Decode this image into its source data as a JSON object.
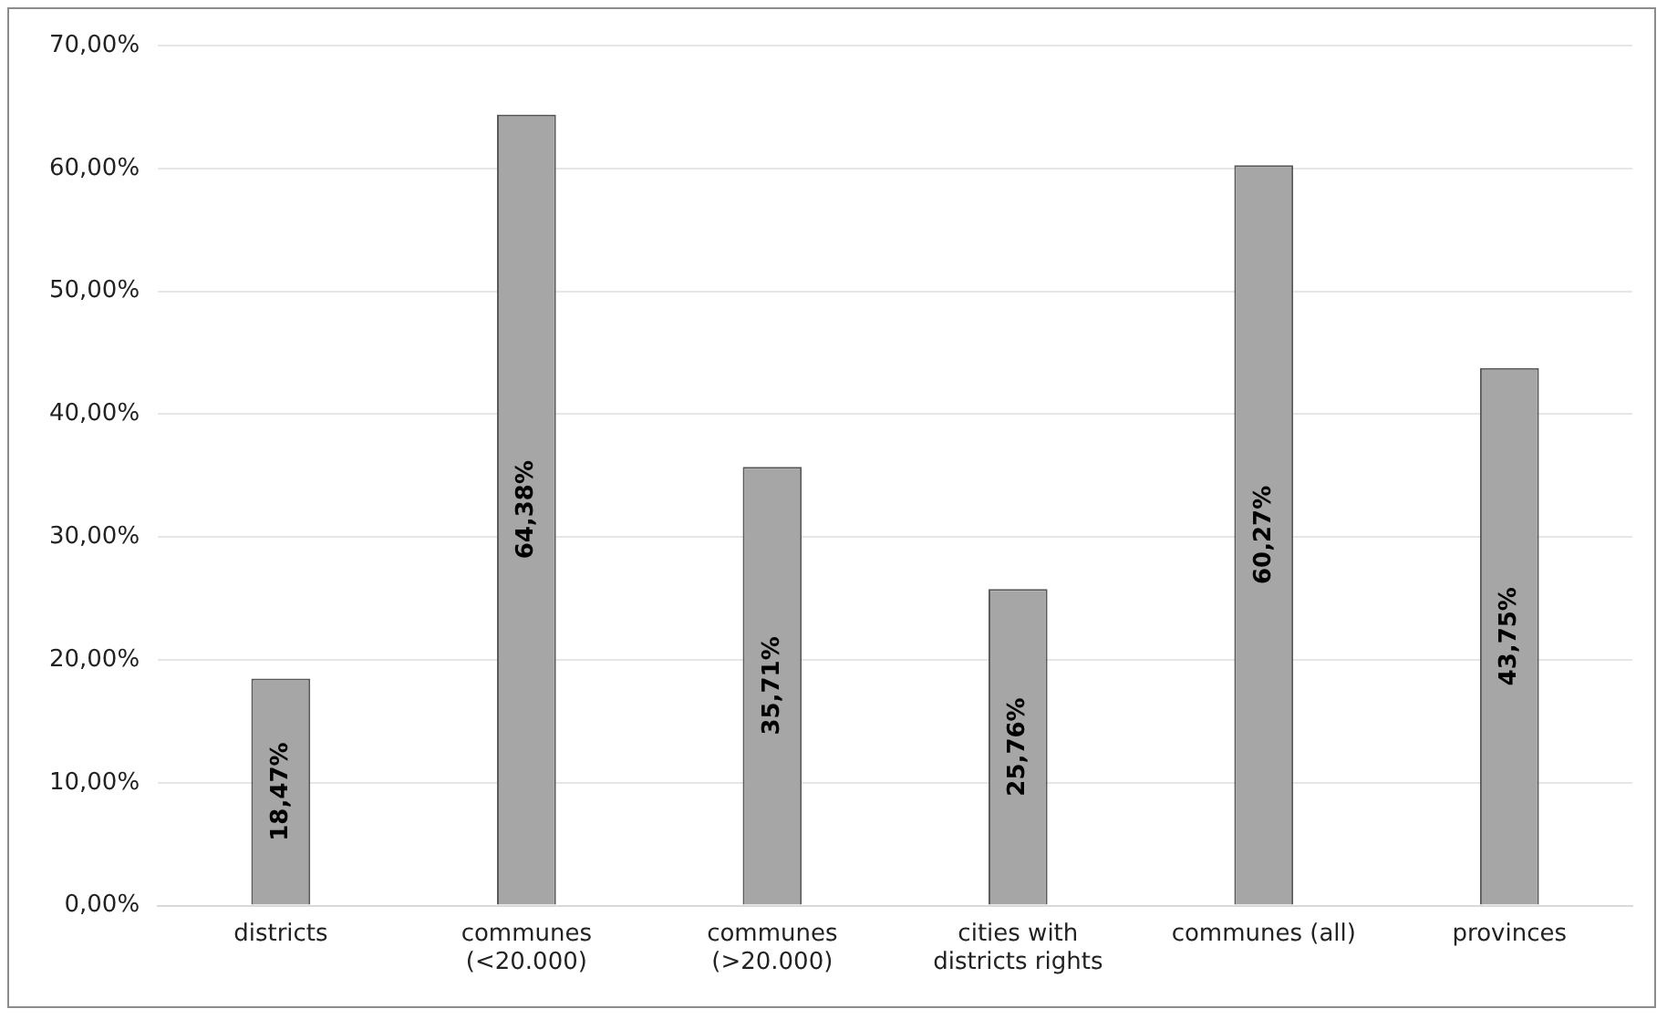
{
  "chart_data": {
    "type": "bar",
    "categories": [
      "districts",
      "communes (<20.000)",
      "communes (>20.000)",
      "cities with districts rights",
      "communes (all)",
      "provinces"
    ],
    "values": [
      18.47,
      64.38,
      35.71,
      25.76,
      60.27,
      43.75
    ],
    "value_labels": [
      "18,47%",
      "64,38%",
      "35,71%",
      "25,76%",
      "60,27%",
      "43,75%"
    ],
    "color": "#a6a6a6",
    "ylim": [
      0,
      70
    ],
    "yticks": [
      {
        "value": 0,
        "label": "0,00%"
      },
      {
        "value": 10,
        "label": "10,00%"
      },
      {
        "value": 20,
        "label": "20,00%"
      },
      {
        "value": 30,
        "label": "30,00%"
      },
      {
        "value": 40,
        "label": "40,00%"
      },
      {
        "value": 50,
        "label": "50,00%"
      },
      {
        "value": 60,
        "label": "60,00%"
      },
      {
        "value": 70,
        "label": "70,00%"
      }
    ],
    "grid": "y",
    "legend": false
  }
}
